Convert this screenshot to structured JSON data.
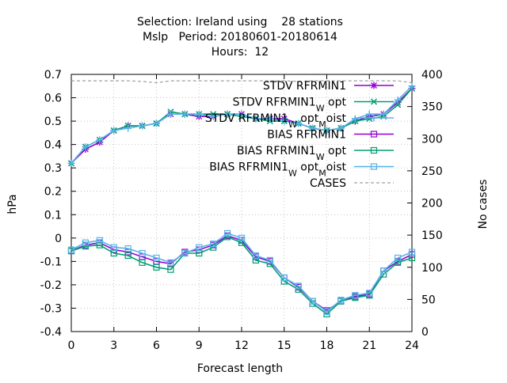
{
  "chart_data": {
    "type": "line",
    "title_lines": [
      "Selection: Ireland using    28 stations",
      "Mslp   Period: 20180601-20180614",
      "Hours:  12"
    ],
    "xlabel": "Forecast length",
    "ylabel": "hPa",
    "y2label": "No cases",
    "xlim": [
      0,
      24
    ],
    "ylim": [
      -0.4,
      0.7
    ],
    "y2lim": [
      0,
      400
    ],
    "xticks": [
      0,
      3,
      6,
      9,
      12,
      15,
      18,
      21,
      24
    ],
    "yticks": [
      -0.4,
      -0.3,
      -0.2,
      -0.1,
      0,
      0.1,
      0.2,
      0.3,
      0.4,
      0.5,
      0.6,
      0.7
    ],
    "ytick_labels": [
      "-0.4",
      "-0.3",
      "-0.2",
      "-0.1",
      "0",
      "0.1",
      "0.2",
      "0.3",
      "0.4",
      "0.5",
      "0.6",
      "0.7"
    ],
    "y2ticks": [
      0,
      50,
      100,
      150,
      200,
      250,
      300,
      350,
      400
    ],
    "grid": true,
    "legend_position": "top-right",
    "x": [
      0,
      1,
      2,
      3,
      4,
      5,
      6,
      7,
      8,
      9,
      10,
      11,
      12,
      13,
      14,
      15,
      16,
      17,
      18,
      19,
      20,
      21,
      22,
      23,
      24
    ],
    "series": [
      {
        "name": "STDV RFRMIN1",
        "legend_base": "STDV RFRMIN1",
        "legend_parts": [],
        "color": "#9400d3",
        "marker": "star",
        "dash": "solid",
        "axis": "y",
        "values": [
          0.32,
          0.38,
          0.41,
          0.46,
          0.48,
          0.48,
          0.49,
          0.53,
          0.53,
          0.52,
          0.52,
          0.53,
          0.53,
          0.51,
          0.51,
          0.51,
          0.49,
          0.47,
          0.46,
          0.47,
          0.5,
          0.52,
          0.53,
          0.58,
          0.64
        ]
      },
      {
        "name": "STDV RFRMIN1_W opt",
        "legend_base": "STDV RFRMIN1",
        "legend_parts": [
          {
            "t": "W",
            "sub": true
          },
          {
            "t": " opt",
            "sub": false
          }
        ],
        "color": "#009e73",
        "marker": "x",
        "dash": "solid",
        "axis": "y",
        "values": [
          0.32,
          0.39,
          0.42,
          0.46,
          0.48,
          0.48,
          0.49,
          0.54,
          0.53,
          0.53,
          0.53,
          0.53,
          0.52,
          0.51,
          0.5,
          0.5,
          0.49,
          0.47,
          0.46,
          0.47,
          0.5,
          0.51,
          0.52,
          0.57,
          0.64
        ]
      },
      {
        "name": "STDV RFRMIN1_W opt_M oist",
        "legend_base": "STDV RFRMIN1",
        "legend_parts": [
          {
            "t": "W",
            "sub": true
          },
          {
            "t": " opt",
            "sub": false
          },
          {
            "t": "M",
            "sub": true
          },
          {
            "t": "oist",
            "sub": false
          }
        ],
        "color": "#56b4e9",
        "marker": "cross",
        "dash": "solid",
        "axis": "y",
        "values": [
          0.32,
          0.39,
          0.42,
          0.46,
          0.47,
          0.48,
          0.49,
          0.53,
          0.53,
          0.53,
          0.52,
          0.53,
          0.53,
          0.51,
          0.51,
          0.5,
          0.49,
          0.47,
          0.46,
          0.47,
          0.51,
          0.53,
          0.53,
          0.59,
          0.65
        ]
      },
      {
        "name": "BIAS RFRMIN1",
        "legend_base": "BIAS RFRMIN1",
        "legend_parts": [],
        "color": "#9400d3",
        "marker": "square",
        "dash": "solid",
        "axis": "y",
        "values": [
          -0.055,
          -0.03,
          -0.02,
          -0.05,
          -0.06,
          -0.08,
          -0.1,
          -0.11,
          -0.06,
          -0.05,
          -0.03,
          0.01,
          -0.01,
          -0.08,
          -0.1,
          -0.17,
          -0.21,
          -0.27,
          -0.31,
          -0.27,
          -0.25,
          -0.24,
          -0.14,
          -0.1,
          -0.07
        ]
      },
      {
        "name": "BIAS RFRMIN1_W opt",
        "legend_base": "BIAS RFRMIN1",
        "legend_parts": [
          {
            "t": "W",
            "sub": true
          },
          {
            "t": " opt",
            "sub": false
          }
        ],
        "color": "#009e73",
        "marker": "square",
        "dash": "solid",
        "axis": "y",
        "values": [
          -0.055,
          -0.035,
          -0.03,
          -0.065,
          -0.075,
          -0.105,
          -0.125,
          -0.135,
          -0.065,
          -0.065,
          -0.04,
          0.005,
          -0.02,
          -0.095,
          -0.11,
          -0.185,
          -0.22,
          -0.28,
          -0.325,
          -0.27,
          -0.255,
          -0.245,
          -0.155,
          -0.105,
          -0.085
        ]
      },
      {
        "name": "BIAS RFRMIN1_W opt_M oist",
        "legend_base": "BIAS RFRMIN1",
        "legend_parts": [
          {
            "t": "W",
            "sub": true
          },
          {
            "t": " opt",
            "sub": false
          },
          {
            "t": "M",
            "sub": true
          },
          {
            "t": "oist",
            "sub": false
          }
        ],
        "color": "#56b4e9",
        "marker": "square",
        "dash": "solid",
        "axis": "y",
        "values": [
          -0.05,
          -0.02,
          -0.01,
          -0.04,
          -0.045,
          -0.065,
          -0.085,
          -0.105,
          -0.065,
          -0.04,
          -0.025,
          0.02,
          0.0,
          -0.075,
          -0.095,
          -0.17,
          -0.205,
          -0.27,
          -0.315,
          -0.265,
          -0.245,
          -0.235,
          -0.14,
          -0.085,
          -0.06
        ]
      },
      {
        "name": "CASES",
        "legend_base": "CASES",
        "legend_parts": [],
        "color": "#a0a0a0",
        "marker": "none",
        "dash": "dash",
        "axis": "y2",
        "values": [
          390,
          390,
          390,
          390,
          390,
          389,
          387,
          390,
          390,
          390,
          390,
          390,
          390,
          390,
          390,
          390,
          389,
          390,
          390,
          390,
          390,
          390,
          390,
          390,
          387
        ]
      }
    ]
  }
}
